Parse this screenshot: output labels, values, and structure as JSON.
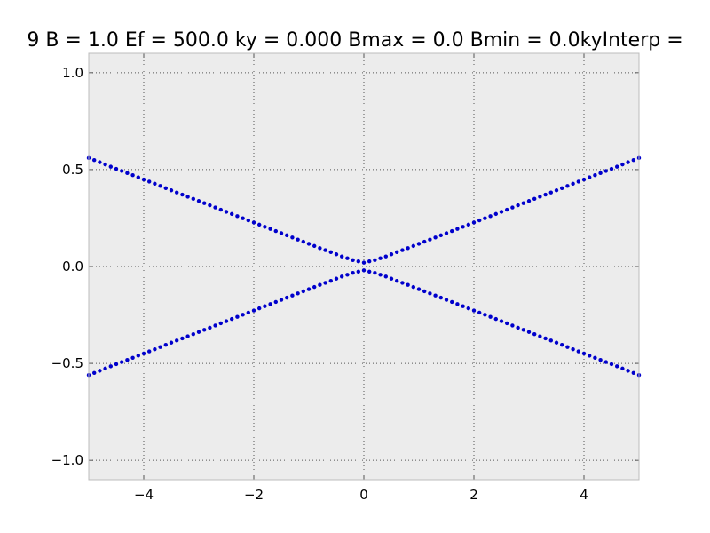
{
  "chart_data": {
    "type": "scatter",
    "title": "9 B = 1.0 Ef = 500.0 ky = 0.000 Bmax = 0.0 Bmin = 0.0kyInterp =",
    "xlabel": "",
    "ylabel": "",
    "xlim": [
      -5,
      5
    ],
    "ylim": [
      -1.1,
      1.1
    ],
    "grid": true,
    "xticks": [
      -4,
      -2,
      0,
      2,
      4
    ],
    "xtick_labels": [
      "−4",
      "−2",
      "0",
      "2",
      "4"
    ],
    "yticks": [
      -1.0,
      -0.5,
      0.0,
      0.5,
      1.0
    ],
    "ytick_labels": [
      "−1.0",
      "−0.5",
      "0.0",
      "0.5",
      "1.0"
    ],
    "marker_color": "#0000cc",
    "plot_background": "#ececec",
    "series": [
      {
        "label_hint": "upper band",
        "x": [
          -5.0,
          -4.8,
          -4.6,
          -4.4,
          -4.2,
          -4.0,
          -3.8,
          -3.6,
          -3.4,
          -3.2,
          -3.0,
          -2.8,
          -2.6,
          -2.4,
          -2.2,
          -2.0,
          -1.8,
          -1.6,
          -1.4,
          -1.2,
          -1.0,
          -0.8,
          -0.6,
          -0.4,
          -0.2,
          0.0,
          0.2,
          0.4,
          0.6,
          0.8,
          1.0,
          1.2,
          1.4,
          1.6,
          1.8,
          2.0,
          2.2,
          2.4,
          2.6,
          2.8,
          3.0,
          3.2,
          3.4,
          3.6,
          3.8,
          4.0,
          4.2,
          4.4,
          4.6,
          4.8,
          5.0
        ],
        "y": [
          0.56,
          0.538,
          0.515,
          0.493,
          0.471,
          0.449,
          0.427,
          0.404,
          0.382,
          0.36,
          0.338,
          0.316,
          0.293,
          0.271,
          0.249,
          0.227,
          0.205,
          0.183,
          0.161,
          0.139,
          0.117,
          0.095,
          0.074,
          0.052,
          0.033,
          0.02,
          0.033,
          0.052,
          0.074,
          0.095,
          0.117,
          0.139,
          0.161,
          0.183,
          0.205,
          0.227,
          0.249,
          0.271,
          0.293,
          0.316,
          0.338,
          0.36,
          0.382,
          0.404,
          0.427,
          0.449,
          0.471,
          0.493,
          0.515,
          0.538,
          0.56
        ]
      },
      {
        "label_hint": "lower band",
        "x": [
          -5.0,
          -4.8,
          -4.6,
          -4.4,
          -4.2,
          -4.0,
          -3.8,
          -3.6,
          -3.4,
          -3.2,
          -3.0,
          -2.8,
          -2.6,
          -2.4,
          -2.2,
          -2.0,
          -1.8,
          -1.6,
          -1.4,
          -1.2,
          -1.0,
          -0.8,
          -0.6,
          -0.4,
          -0.2,
          0.0,
          0.2,
          0.4,
          0.6,
          0.8,
          1.0,
          1.2,
          1.4,
          1.6,
          1.8,
          2.0,
          2.2,
          2.4,
          2.6,
          2.8,
          3.0,
          3.2,
          3.4,
          3.6,
          3.8,
          4.0,
          4.2,
          4.4,
          4.6,
          4.8,
          5.0
        ],
        "y": [
          -0.56,
          -0.538,
          -0.515,
          -0.493,
          -0.471,
          -0.449,
          -0.427,
          -0.404,
          -0.382,
          -0.36,
          -0.338,
          -0.316,
          -0.293,
          -0.271,
          -0.249,
          -0.227,
          -0.205,
          -0.183,
          -0.161,
          -0.139,
          -0.117,
          -0.095,
          -0.074,
          -0.052,
          -0.033,
          -0.02,
          -0.033,
          -0.052,
          -0.074,
          -0.095,
          -0.117,
          -0.139,
          -0.161,
          -0.183,
          -0.205,
          -0.227,
          -0.249,
          -0.271,
          -0.293,
          -0.316,
          -0.338,
          -0.36,
          -0.382,
          -0.404,
          -0.427,
          -0.449,
          -0.471,
          -0.493,
          -0.515,
          -0.538,
          -0.56
        ]
      }
    ]
  }
}
